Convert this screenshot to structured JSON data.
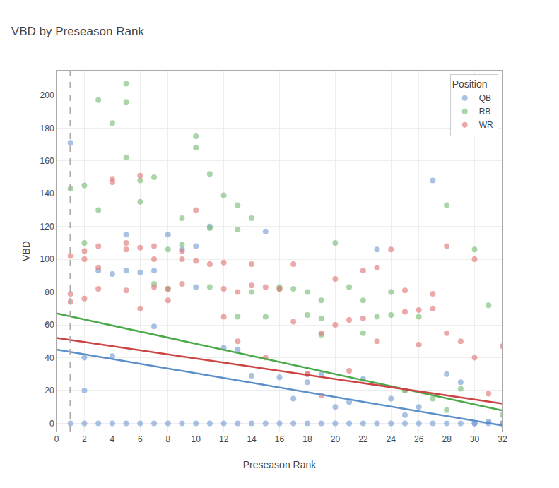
{
  "chart_data": {
    "type": "scatter",
    "title": "VBD by Preseason Rank",
    "x_label": "Preseason Rank",
    "y_label": "VBD",
    "xlim": [
      0,
      32
    ],
    "ylim": [
      -5,
      215
    ],
    "xticks": [
      0,
      2,
      4,
      6,
      8,
      10,
      12,
      14,
      16,
      18,
      20,
      22,
      24,
      26,
      28,
      30,
      32
    ],
    "yticks": [
      0,
      20,
      40,
      60,
      80,
      100,
      120,
      140,
      160,
      180,
      200
    ],
    "grid": true,
    "legend": "upper right",
    "legend_title": "Position",
    "series": [
      {
        "name": "QB",
        "type": "scatter",
        "color": "#7b9fd4",
        "x": [
          1,
          2,
          2,
          3,
          4,
          4,
          5,
          5,
          6,
          7,
          7,
          8,
          9,
          10,
          10,
          11,
          12,
          13,
          14,
          15,
          16,
          17,
          18,
          19,
          20,
          21,
          22,
          23,
          24,
          25,
          26,
          27,
          28,
          29,
          30,
          31,
          32,
          1,
          2,
          3,
          4,
          5,
          6,
          7,
          8,
          9,
          10,
          11,
          12,
          13,
          14,
          15,
          16,
          17,
          18,
          19,
          20,
          21,
          22,
          23,
          24,
          25,
          26,
          27,
          28,
          29,
          30,
          31,
          32
        ],
        "values": [
          171,
          40,
          20,
          93,
          91,
          41,
          115,
          93,
          92,
          93,
          59,
          115,
          106,
          83,
          108,
          120,
          46,
          45,
          29,
          117,
          28,
          15,
          25,
          30,
          10,
          13,
          27,
          106,
          15,
          5,
          10,
          148,
          30,
          25,
          0,
          1,
          0,
          0,
          0,
          0,
          0,
          0,
          0,
          0,
          0,
          0,
          0,
          0,
          0,
          0,
          0,
          0,
          0,
          0,
          0,
          0,
          0,
          0,
          0,
          0,
          0,
          0,
          0,
          0,
          0,
          0,
          0,
          0,
          0
        ]
      },
      {
        "name": "RB",
        "type": "scatter",
        "color": "#7bbf7b",
        "x": [
          1,
          2,
          2,
          3,
          3,
          4,
          5,
          5,
          6,
          6,
          7,
          7,
          8,
          9,
          9,
          10,
          10,
          11,
          11,
          12,
          13,
          13,
          14,
          14,
          15,
          16,
          17,
          18,
          18,
          19,
          19,
          20,
          21,
          22,
          23,
          24,
          24,
          25,
          26,
          27,
          28,
          29,
          30,
          31,
          32,
          5,
          8,
          11,
          13,
          16,
          19,
          22,
          25,
          28
        ],
        "values": [
          143,
          110,
          145,
          130,
          197,
          183,
          196,
          162,
          135,
          148,
          150,
          85,
          82,
          125,
          109,
          175,
          168,
          152,
          119,
          139,
          118,
          133,
          125,
          80,
          65,
          83,
          82,
          80,
          66,
          75,
          64,
          110,
          83,
          75,
          65,
          80,
          66,
          20,
          65,
          15,
          133,
          21,
          106,
          72,
          5,
          207,
          106,
          83,
          65,
          82,
          54,
          55,
          20,
          8
        ]
      },
      {
        "name": "WR",
        "type": "scatter",
        "color": "#e07b7b",
        "x": [
          1,
          1,
          1,
          2,
          2,
          2,
          3,
          3,
          3,
          4,
          4,
          5,
          5,
          5,
          6,
          6,
          6,
          7,
          7,
          7,
          8,
          8,
          9,
          9,
          9,
          10,
          10,
          11,
          12,
          12,
          12,
          13,
          13,
          14,
          14,
          15,
          15,
          16,
          17,
          17,
          18,
          18,
          19,
          19,
          20,
          20,
          21,
          21,
          22,
          22,
          23,
          23,
          24,
          25,
          25,
          26,
          26,
          27,
          27,
          28,
          28,
          29,
          30,
          30,
          31,
          32
        ],
        "values": [
          102,
          79,
          74,
          105,
          100,
          76,
          108,
          95,
          82,
          149,
          147,
          110,
          106,
          81,
          151,
          107,
          70,
          108,
          100,
          83,
          82,
          75,
          105,
          100,
          85,
          130,
          99,
          97,
          98,
          82,
          65,
          80,
          50,
          97,
          84,
          83,
          40,
          82,
          97,
          62,
          30,
          30,
          55,
          17,
          88,
          60,
          63,
          32,
          93,
          64,
          95,
          50,
          106,
          81,
          68,
          69,
          48,
          79,
          70,
          108,
          55,
          50,
          100,
          40,
          18,
          47
        ]
      },
      {
        "type": "line",
        "line_style": "solid",
        "color": "#5b8fc9",
        "x": [
          0,
          32
        ],
        "values": [
          45,
          -1.4
        ]
      },
      {
        "type": "line",
        "line_style": "solid",
        "color": "#4aaa4a",
        "x": [
          0,
          32
        ],
        "values": [
          67,
          7.8
        ]
      },
      {
        "type": "line",
        "line_style": "solid",
        "color": "#cc4444",
        "x": [
          0,
          32
        ],
        "values": [
          52,
          12
        ]
      },
      {
        "type": "line",
        "line_style": "dashed",
        "color": "#aaaaaa",
        "x": [
          1,
          1
        ],
        "values": [
          -5,
          215
        ]
      }
    ]
  }
}
